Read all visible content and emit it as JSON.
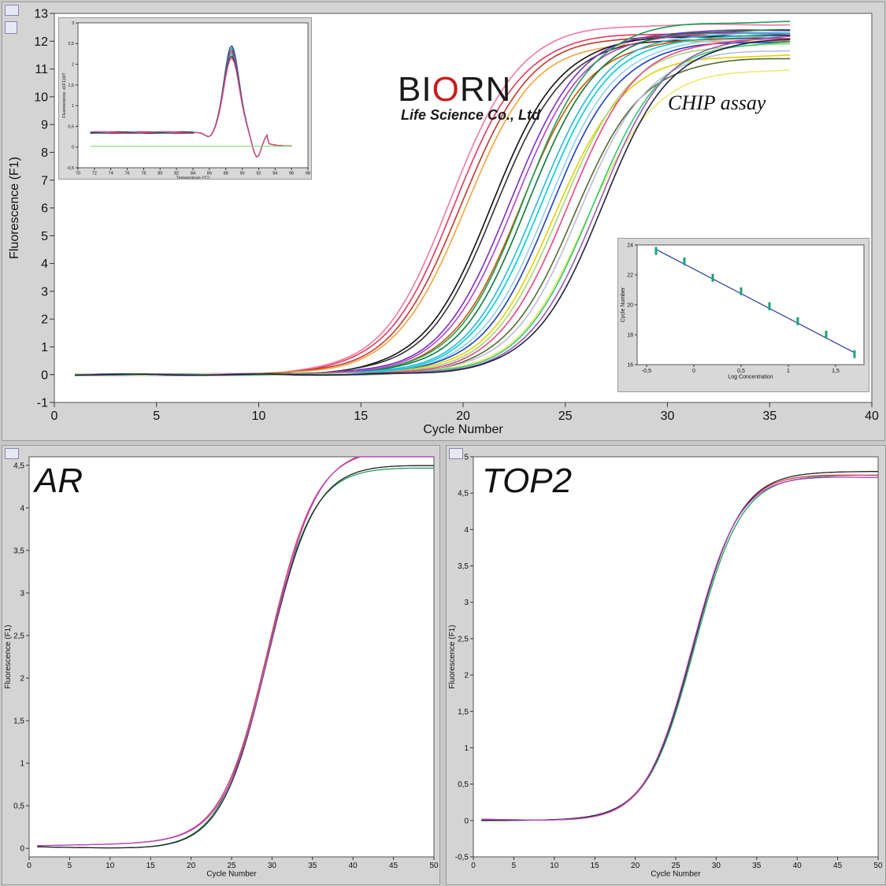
{
  "brand": {
    "logo_text_a": "BI",
    "logo_text_b": "O",
    "logo_text_c": "RN",
    "subtitle": "Life Science Co., Ltd",
    "label": "CHIP assay"
  },
  "colors": {
    "background": "#d4d4d4",
    "plot_bg": "#ffffff",
    "regression_line": "#2a3fa0",
    "error_bar": "#19a37a"
  },
  "chart_data": [
    {
      "id": "main",
      "type": "line",
      "xlabel": "Cycle Number",
      "ylabel": "Fluorescence (F1)",
      "xlim": [
        0,
        40
      ],
      "ylim": [
        -1,
        13
      ],
      "xticks": [
        0,
        5,
        10,
        15,
        20,
        25,
        30,
        35,
        40
      ],
      "yticks": [
        -1,
        0,
        1,
        2,
        3,
        4,
        5,
        6,
        7,
        8,
        9,
        10,
        11,
        12,
        13
      ],
      "series_model": "sigmoid amplification curves, midpoint cycle / plateau",
      "series": [
        {
          "color": "#e8365a",
          "mid": 19.6,
          "plateau": 12.3
        },
        {
          "color": "#f07aa0",
          "mid": 19.4,
          "plateau": 12.6
        },
        {
          "color": "#c0392b",
          "mid": 19.9,
          "plateau": 12.2
        },
        {
          "color": "#f4a340",
          "mid": 20.1,
          "plateau": 12.0
        },
        {
          "color": "#111111",
          "mid": 21.4,
          "plateau": 12.2
        },
        {
          "color": "#333333",
          "mid": 21.6,
          "plateau": 12.1
        },
        {
          "color": "#7b2fbf",
          "mid": 22.3,
          "plateau": 12.4
        },
        {
          "color": "#b044c8",
          "mid": 22.5,
          "plateau": 12.3
        },
        {
          "color": "#d35400",
          "mid": 22.8,
          "plateau": 12.1
        },
        {
          "color": "#1e9e56",
          "mid": 23.0,
          "plateau": 12.7
        },
        {
          "color": "#0a7a3a",
          "mid": 23.2,
          "plateau": 12.4
        },
        {
          "color": "#25b8e0",
          "mid": 23.6,
          "plateau": 12.3
        },
        {
          "color": "#00ced1",
          "mid": 23.8,
          "plateau": 12.2
        },
        {
          "color": "#8fd0f0",
          "mid": 24.1,
          "plateau": 12.1
        },
        {
          "color": "#1f3fbf",
          "mid": 24.3,
          "plateau": 12.0
        },
        {
          "color": "#e5d000",
          "mid": 24.5,
          "plateau": 11.5
        },
        {
          "color": "#a3d977",
          "mid": 24.8,
          "plateau": 11.9
        },
        {
          "color": "#ee4488",
          "mid": 25.1,
          "plateau": 12.1
        },
        {
          "color": "#556b2f",
          "mid": 25.4,
          "plateau": 11.4
        },
        {
          "color": "#bbbbdd",
          "mid": 25.7,
          "plateau": 11.7
        },
        {
          "color": "#f2e86d",
          "mid": 26.0,
          "plateau": 11.0
        },
        {
          "color": "#2ecc71",
          "mid": 26.3,
          "plateau": 12.0
        },
        {
          "color": "#9b59b6",
          "mid": 26.6,
          "plateau": 12.2
        },
        {
          "color": "#222244",
          "mid": 26.8,
          "plateau": 12.1
        }
      ]
    },
    {
      "id": "melt",
      "type": "line",
      "xlabel": "Temperature (°C)",
      "ylabel": "Fluorescence -d(F1)/dT",
      "xlim": [
        70,
        98
      ],
      "ylim": [
        -0.5,
        3
      ],
      "xticks": [
        70,
        72,
        74,
        76,
        78,
        80,
        82,
        84,
        86,
        88,
        90,
        92,
        94,
        96,
        98
      ],
      "yticks": [
        -0.5,
        0,
        0.5,
        1,
        1.5,
        2,
        2.5,
        3
      ],
      "ytick_labels": [
        "-0,5",
        "0",
        "0,5",
        "1",
        "1,5",
        "2",
        "2,5",
        "3"
      ],
      "peak_temperature": 88.7,
      "peak_values": [
        2.1,
        2.05,
        2.0,
        1.95,
        1.9,
        1.85,
        1.8
      ]
    },
    {
      "id": "standard",
      "type": "scatter",
      "xlabel": "Log Concentration",
      "ylabel": "Cycle Number",
      "xlim": [
        -0.6,
        1.8
      ],
      "ylim": [
        16,
        24
      ],
      "xticks": [
        -0.5,
        0,
        0.5,
        1,
        1.5
      ],
      "xtick_labels": [
        "-0,5",
        "0",
        "0,5",
        "1",
        "1,5"
      ],
      "yticks": [
        16,
        18,
        20,
        22,
        24
      ],
      "points": [
        {
          "x": -0.4,
          "y": 23.6
        },
        {
          "x": -0.1,
          "y": 22.9
        },
        {
          "x": 0.2,
          "y": 21.8
        },
        {
          "x": 0.5,
          "y": 20.9
        },
        {
          "x": 0.8,
          "y": 19.9
        },
        {
          "x": 1.1,
          "y": 18.9
        },
        {
          "x": 1.4,
          "y": 18.0
        },
        {
          "x": 1.7,
          "y": 16.7
        }
      ],
      "fit": [
        {
          "x": -0.4,
          "y": 23.7
        },
        {
          "x": 1.7,
          "y": 16.8
        }
      ]
    },
    {
      "id": "ar",
      "type": "line",
      "label": "AR",
      "xlabel": "Cycle Number",
      "ylabel": "Fluorescence (F1)",
      "xlim": [
        0,
        50
      ],
      "ylim": [
        -0.1,
        4.6
      ],
      "xticks": [
        0,
        5,
        10,
        15,
        20,
        25,
        30,
        35,
        40,
        45,
        50
      ],
      "yticks": [
        0,
        0.5,
        1,
        1.5,
        2,
        2.5,
        3,
        3.5,
        4,
        4.5
      ],
      "ytick_labels": [
        "0",
        "0,5",
        "1",
        "1,5",
        "2",
        "2,5",
        "3",
        "3,5",
        "4",
        "4,5"
      ],
      "series": [
        {
          "color": "#1e9e56",
          "mid": 29.3,
          "plateau": 4.55
        },
        {
          "color": "#e8365a",
          "mid": 29.6,
          "plateau": 4.6
        },
        {
          "color": "#222222",
          "mid": 29.5,
          "plateau": 4.58
        },
        {
          "color": "#b044c8",
          "mid": 29.8,
          "plateau": 4.62
        }
      ]
    },
    {
      "id": "top2",
      "type": "line",
      "label": "TOP2",
      "xlabel": "Cycle Number",
      "ylabel": "Fluorescence (F1)",
      "xlim": [
        0,
        50
      ],
      "ylim": [
        -0.5,
        5
      ],
      "xticks": [
        0,
        5,
        10,
        15,
        20,
        25,
        30,
        35,
        40,
        45,
        50
      ],
      "yticks": [
        -0.5,
        0,
        0.5,
        1,
        1.5,
        2,
        2.5,
        3,
        3.5,
        4,
        4.5,
        5
      ],
      "ytick_labels": [
        "-0,5",
        "0",
        "0,5",
        "1",
        "1,5",
        "2",
        "2,5",
        "3",
        "3,5",
        "4",
        "4,5",
        "5"
      ],
      "series": [
        {
          "color": "#1e9e56",
          "mid": 27.3,
          "plateau": 4.75
        },
        {
          "color": "#e8365a",
          "mid": 27.1,
          "plateau": 4.85
        },
        {
          "color": "#222222",
          "mid": 27.2,
          "plateau": 4.8
        },
        {
          "color": "#b044c8",
          "mid": 27.0,
          "plateau": 4.82
        }
      ]
    }
  ]
}
